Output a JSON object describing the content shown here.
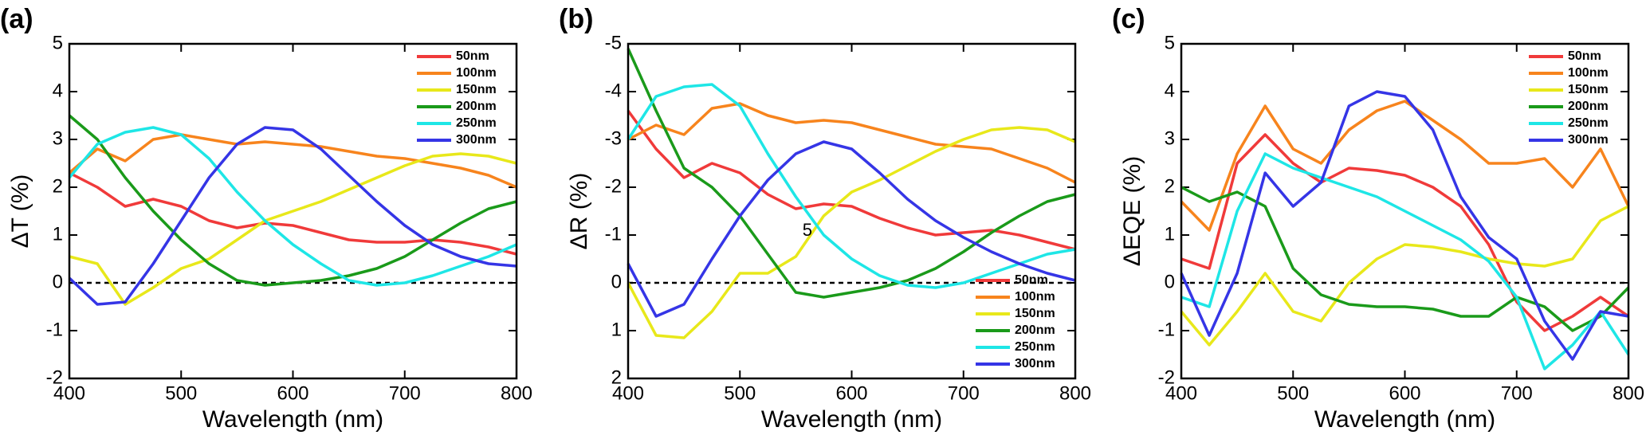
{
  "chart_data": [
    {
      "type": "line",
      "label": "(a)",
      "xlabel": "Wavelength (nm)",
      "ylabel": "ΔT (%)",
      "x": [
        400,
        425,
        450,
        475,
        500,
        525,
        550,
        575,
        600,
        625,
        650,
        675,
        700,
        725,
        750,
        775,
        800
      ],
      "xlim": [
        400,
        800
      ],
      "xticks": [
        400,
        500,
        600,
        700,
        800
      ],
      "ylim": [
        -2,
        5
      ],
      "yticks": [
        -2,
        -1,
        0,
        1,
        2,
        3,
        4,
        5
      ],
      "hline": 0,
      "legend": "upper right",
      "series": [
        {
          "name": "50nm",
          "color": "#f03a3a",
          "values": [
            2.3,
            2.0,
            1.6,
            1.75,
            1.6,
            1.3,
            1.15,
            1.25,
            1.2,
            1.05,
            0.9,
            0.85,
            0.85,
            0.9,
            0.85,
            0.75,
            0.6
          ]
        },
        {
          "name": "100nm",
          "color": "#f7841d",
          "values": [
            2.3,
            2.8,
            2.55,
            3.0,
            3.1,
            3.0,
            2.9,
            2.95,
            2.9,
            2.85,
            2.75,
            2.65,
            2.6,
            2.5,
            2.4,
            2.25,
            2.0
          ]
        },
        {
          "name": "150nm",
          "color": "#e8e81a",
          "values": [
            0.55,
            0.4,
            -0.45,
            -0.1,
            0.3,
            0.5,
            0.9,
            1.3,
            1.5,
            1.7,
            1.95,
            2.2,
            2.45,
            2.65,
            2.7,
            2.65,
            2.5
          ]
        },
        {
          "name": "200nm",
          "color": "#1a9a1a",
          "values": [
            3.5,
            3.0,
            2.2,
            1.5,
            0.9,
            0.4,
            0.05,
            -0.05,
            0.0,
            0.05,
            0.15,
            0.3,
            0.55,
            0.9,
            1.25,
            1.55,
            1.7
          ]
        },
        {
          "name": "250nm",
          "color": "#1ee6e6",
          "values": [
            2.2,
            2.9,
            3.15,
            3.25,
            3.1,
            2.6,
            1.9,
            1.3,
            0.8,
            0.4,
            0.05,
            -0.05,
            0.0,
            0.15,
            0.35,
            0.55,
            0.8
          ]
        },
        {
          "name": "300nm",
          "color": "#3535e6",
          "values": [
            0.1,
            -0.45,
            -0.4,
            0.4,
            1.3,
            2.2,
            2.9,
            3.25,
            3.2,
            2.8,
            2.25,
            1.7,
            1.2,
            0.8,
            0.55,
            0.4,
            0.35
          ]
        }
      ]
    },
    {
      "type": "line",
      "label": "(b)",
      "xlabel": "Wavelength (nm)",
      "ylabel": "ΔR (%)",
      "annotation": "5",
      "x": [
        400,
        425,
        450,
        475,
        500,
        525,
        550,
        575,
        600,
        625,
        650,
        675,
        700,
        725,
        750,
        775,
        800
      ],
      "xlim": [
        400,
        800
      ],
      "xticks": [
        400,
        500,
        600,
        700,
        800
      ],
      "ylim": [
        2,
        -5
      ],
      "yticks": [
        -5,
        -4,
        -3,
        -2,
        -1,
        0,
        1,
        2
      ],
      "hline": 0,
      "legend": "lower right",
      "series": [
        {
          "name": "50nm",
          "color": "#f03a3a",
          "values": [
            -3.6,
            -2.8,
            -2.2,
            -2.5,
            -2.3,
            -1.85,
            -1.55,
            -1.65,
            -1.6,
            -1.35,
            -1.15,
            -1.0,
            -1.05,
            -1.1,
            -1.0,
            -0.85,
            -0.7
          ]
        },
        {
          "name": "100nm",
          "color": "#f7841d",
          "values": [
            -3.0,
            -3.3,
            -3.1,
            -3.65,
            -3.75,
            -3.5,
            -3.35,
            -3.4,
            -3.35,
            -3.2,
            -3.05,
            -2.9,
            -2.85,
            -2.8,
            -2.6,
            -2.4,
            -2.1
          ]
        },
        {
          "name": "150nm",
          "color": "#e8e81a",
          "values": [
            0.0,
            1.1,
            1.15,
            0.6,
            -0.2,
            -0.2,
            -0.55,
            -1.4,
            -1.9,
            -2.15,
            -2.45,
            -2.75,
            -3.0,
            -3.2,
            -3.25,
            -3.2,
            -2.95
          ]
        },
        {
          "name": "200nm",
          "color": "#1a9a1a",
          "values": [
            -4.9,
            -3.6,
            -2.4,
            -2.0,
            -1.4,
            -0.6,
            0.2,
            0.3,
            0.2,
            0.1,
            -0.05,
            -0.3,
            -0.65,
            -1.05,
            -1.4,
            -1.7,
            -1.85
          ]
        },
        {
          "name": "250nm",
          "color": "#1ee6e6",
          "values": [
            -3.0,
            -3.9,
            -4.1,
            -4.15,
            -3.7,
            -2.7,
            -1.8,
            -1.0,
            -0.5,
            -0.15,
            0.05,
            0.1,
            0.0,
            -0.2,
            -0.4,
            -0.6,
            -0.7
          ]
        },
        {
          "name": "300nm",
          "color": "#3535e6",
          "values": [
            -0.4,
            0.7,
            0.45,
            -0.5,
            -1.4,
            -2.15,
            -2.7,
            -2.95,
            -2.8,
            -2.3,
            -1.75,
            -1.3,
            -0.95,
            -0.65,
            -0.4,
            -0.2,
            -0.05
          ]
        }
      ]
    },
    {
      "type": "line",
      "label": "(c)",
      "xlabel": "Wavelength (nm)",
      "ylabel": "ΔEQE (%)",
      "x": [
        400,
        425,
        450,
        475,
        500,
        525,
        550,
        575,
        600,
        625,
        650,
        675,
        700,
        725,
        750,
        775,
        800
      ],
      "xlim": [
        400,
        800
      ],
      "xticks": [
        400,
        500,
        600,
        700,
        800
      ],
      "ylim": [
        -2,
        5
      ],
      "yticks": [
        -2,
        -1,
        0,
        1,
        2,
        3,
        4,
        5
      ],
      "hline": 0,
      "legend": "upper right",
      "series": [
        {
          "name": "50nm",
          "color": "#f03a3a",
          "values": [
            0.5,
            0.3,
            2.5,
            3.1,
            2.5,
            2.1,
            2.4,
            2.35,
            2.25,
            2.0,
            1.6,
            0.8,
            -0.4,
            -1.0,
            -0.7,
            -0.3,
            -0.7
          ]
        },
        {
          "name": "100nm",
          "color": "#f7841d",
          "values": [
            1.7,
            1.1,
            2.7,
            3.7,
            2.8,
            2.5,
            3.2,
            3.6,
            3.8,
            3.4,
            3.0,
            2.5,
            2.5,
            2.6,
            2.0,
            2.8,
            1.6
          ]
        },
        {
          "name": "150nm",
          "color": "#e8e81a",
          "values": [
            -0.6,
            -1.3,
            -0.6,
            0.2,
            -0.6,
            -0.8,
            0.0,
            0.5,
            0.8,
            0.75,
            0.65,
            0.5,
            0.4,
            0.35,
            0.5,
            1.3,
            1.6
          ]
        },
        {
          "name": "200nm",
          "color": "#1a9a1a",
          "values": [
            2.0,
            1.7,
            1.9,
            1.6,
            0.3,
            -0.25,
            -0.45,
            -0.5,
            -0.5,
            -0.55,
            -0.7,
            -0.7,
            -0.3,
            -0.5,
            -1.0,
            -0.7,
            -0.1
          ]
        },
        {
          "name": "250nm",
          "color": "#1ee6e6",
          "values": [
            -0.3,
            -0.5,
            1.5,
            2.7,
            2.4,
            2.2,
            2.0,
            1.8,
            1.5,
            1.2,
            0.9,
            0.45,
            -0.3,
            -1.8,
            -1.3,
            -0.6,
            -1.5
          ]
        },
        {
          "name": "300nm",
          "color": "#3535e6",
          "values": [
            0.2,
            -1.1,
            0.2,
            2.3,
            1.6,
            2.1,
            3.7,
            4.0,
            3.9,
            3.2,
            1.8,
            0.95,
            0.5,
            -0.8,
            -1.6,
            -0.6,
            -0.7
          ]
        }
      ]
    }
  ]
}
